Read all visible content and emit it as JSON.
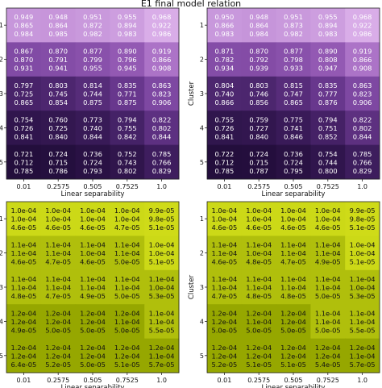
{
  "figure": {
    "title": "E1 final model relation"
  },
  "chart_data": [
    {
      "type": "heatmap",
      "id": "top-left",
      "colormap": "purples",
      "xlabel": "Linear separability",
      "ylabel": "Cluster",
      "x_ticks": [
        "0.01",
        "0.2575",
        "0.505",
        "0.7525",
        "1.0"
      ],
      "y_ticks": [
        "1",
        "2",
        "3",
        "4",
        "5"
      ],
      "cells": [
        [
          [
            "0.949",
            "0.865",
            "0.984"
          ],
          [
            "0.948",
            "0.864",
            "0.985"
          ],
          [
            "0.951",
            "0.872",
            "0.982"
          ],
          [
            "0.955",
            "0.894",
            "0.983"
          ],
          [
            "0.968",
            "0.922",
            "0.986"
          ]
        ],
        [
          [
            "0.867",
            "0.870",
            "0.931"
          ],
          [
            "0.870",
            "0.791",
            "0.941"
          ],
          [
            "0.877",
            "0.799",
            "0.955"
          ],
          [
            "0.890",
            "0.796",
            "0.945"
          ],
          [
            "0.919",
            "0.866",
            "0.908"
          ]
        ],
        [
          [
            "0.797",
            "0.725",
            "0.865"
          ],
          [
            "0.803",
            "0.745",
            "0.854"
          ],
          [
            "0.814",
            "0.744",
            "0.875"
          ],
          [
            "0.835",
            "0.771",
            "0.875"
          ],
          [
            "0.863",
            "0.823",
            "0.906"
          ]
        ],
        [
          [
            "0.754",
            "0.726",
            "0.841"
          ],
          [
            "0.760",
            "0.725",
            "0.840"
          ],
          [
            "0.773",
            "0.740",
            "0.844"
          ],
          [
            "0.794",
            "0.755",
            "0.842"
          ],
          [
            "0.822",
            "0.802",
            "0.844"
          ]
        ],
        [
          [
            "0.721",
            "0.712",
            "0.785"
          ],
          [
            "0.724",
            "0.715",
            "0.786"
          ],
          [
            "0.736",
            "0.724",
            "0.793"
          ],
          [
            "0.752",
            "0.743",
            "0.802"
          ],
          [
            "0.785",
            "0.766",
            "0.829"
          ]
        ]
      ]
    },
    {
      "type": "heatmap",
      "id": "top-right",
      "colormap": "purples",
      "xlabel": "Linear separability",
      "ylabel": "Cluster",
      "x_ticks": [
        "0.01",
        "0.2575",
        "0.505",
        "0.7525",
        "1.0"
      ],
      "y_ticks": [
        "1",
        "2",
        "3",
        "4",
        "5"
      ],
      "cells": [
        [
          [
            "0.950",
            "0.866",
            "0.983"
          ],
          [
            "0.948",
            "0.864",
            "0.984"
          ],
          [
            "0.951",
            "0.873",
            "0.982"
          ],
          [
            "0.955",
            "0.894",
            "0.983"
          ],
          [
            "0.968",
            "0.922",
            "0.986"
          ]
        ],
        [
          [
            "0.871",
            "0.782",
            "0.934"
          ],
          [
            "0.870",
            "0.792",
            "0.939"
          ],
          [
            "0.877",
            "0.798",
            "0.933"
          ],
          [
            "0.890",
            "0.808",
            "0.947"
          ],
          [
            "0.919",
            "0.866",
            "0.908"
          ]
        ],
        [
          [
            "0.804",
            "0.740",
            "0.866"
          ],
          [
            "0.803",
            "0.746",
            "0.856"
          ],
          [
            "0.815",
            "0.747",
            "0.865"
          ],
          [
            "0.835",
            "0.777",
            "0.876"
          ],
          [
            "0.863",
            "0.823",
            "0.906"
          ]
        ],
        [
          [
            "0.755",
            "0.726",
            "0.841"
          ],
          [
            "0.759",
            "0.727",
            "0.840"
          ],
          [
            "0.775",
            "0.741",
            "0.846"
          ],
          [
            "0.794",
            "0.751",
            "0.852"
          ],
          [
            "0.822",
            "0.802",
            "0.844"
          ]
        ],
        [
          [
            "0.722",
            "0.712",
            "0.785"
          ],
          [
            "0.724",
            "0.715",
            "0.787"
          ],
          [
            "0.736",
            "0.724",
            "0.795"
          ],
          [
            "0.754",
            "0.744",
            "0.800"
          ],
          [
            "0.785",
            "0.766",
            "0.829"
          ]
        ]
      ]
    },
    {
      "type": "heatmap",
      "id": "bottom-left",
      "colormap": "olive",
      "xlabel": "Linear separability",
      "ylabel": "Cluster",
      "x_ticks": [
        "0.01",
        "0.2575",
        "0.505",
        "0.7525",
        "1.0"
      ],
      "y_ticks": [
        "1",
        "2",
        "3",
        "4",
        "5"
      ],
      "cells": [
        [
          [
            "1.0e-04",
            "1.0e-04",
            "4.6e-05"
          ],
          [
            "1.0e-04",
            "1.0e-04",
            "4.6e-05"
          ],
          [
            "1.0e-04",
            "1.0e-04",
            "4.6e-05"
          ],
          [
            "1.0e-04",
            "1.0e-04",
            "4.7e-05"
          ],
          [
            "9.9e-05",
            "9.8e-05",
            "5.1e-05"
          ]
        ],
        [
          [
            "1.1e-04",
            "1.1e-04",
            "4.6e-05"
          ],
          [
            "1.1e-04",
            "1.1e-04",
            "4.7e-05"
          ],
          [
            "1.1e-04",
            "1.0e-04",
            "4.6e-05"
          ],
          [
            "1.1e-04",
            "1.1e-04",
            "5.0e-05"
          ],
          [
            "1.0e-04",
            "1.0e-04",
            "5.1e-05"
          ]
        ],
        [
          [
            "1.1e-04",
            "1.1e-04",
            "4.8e-05"
          ],
          [
            "1.1e-04",
            "1.1e-04",
            "4.7e-05"
          ],
          [
            "1.1e-04",
            "1.1e-04",
            "4.9e-05"
          ],
          [
            "1.1e-04",
            "1.1e-04",
            "5.0e-05"
          ],
          [
            "1.1e-04",
            "1.0e-04",
            "5.3e-05"
          ]
        ],
        [
          [
            "1.2e-04",
            "1.2e-04",
            "4.9e-05"
          ],
          [
            "1.2e-04",
            "1.2e-04",
            "5.0e-05"
          ],
          [
            "1.2e-04",
            "1.2e-04",
            "5.0e-05"
          ],
          [
            "1.2e-04",
            "1.1e-04",
            "5.0e-05"
          ],
          [
            "1.1e-04",
            "1.1e-04",
            "5.5e-05"
          ]
        ],
        [
          [
            "1.2e-04",
            "1.2e-04",
            "6.4e-05"
          ],
          [
            "1.2e-04",
            "1.2e-04",
            "5.2e-05"
          ],
          [
            "1.2e-04",
            "1.2e-04",
            "5.0e-05"
          ],
          [
            "1.2e-04",
            "1.2e-04",
            "5.1e-05"
          ],
          [
            "1.2e-04",
            "1.1e-04",
            "5.7e-05"
          ]
        ]
      ]
    },
    {
      "type": "heatmap",
      "id": "bottom-right",
      "colormap": "olive",
      "xlabel": "Linear separability",
      "ylabel": "Cluster",
      "x_ticks": [
        "0.01",
        "0.2575",
        "0.505",
        "0.7525",
        "1.0"
      ],
      "y_ticks": [
        "1",
        "2",
        "3",
        "4",
        "5"
      ],
      "cells": [
        [
          [
            "1.0e-04",
            "1.0e-04",
            "4.6e-05"
          ],
          [
            "1.0e-04",
            "1.0e-04",
            "4.6e-05"
          ],
          [
            "1.0e-04",
            "1.0e-04",
            "4.6e-05"
          ],
          [
            "1.0e-04",
            "1.0e-04",
            "4.6e-05"
          ],
          [
            "9.9e-05",
            "9.8e-05",
            "5.1e-05"
          ]
        ],
        [
          [
            "1.1e-04",
            "1.1e-04",
            "4.6e-05"
          ],
          [
            "1.1e-04",
            "1.0e-04",
            "4.8e-05"
          ],
          [
            "1.1e-04",
            "1.1e-04",
            "4.7e-05"
          ],
          [
            "1.1e-04",
            "1.1e-04",
            "4.9e-05"
          ],
          [
            "1.0e-04",
            "1.0e-04",
            "5.1e-05"
          ]
        ],
        [
          [
            "1.1e-04",
            "1.1e-04",
            "4.7e-05"
          ],
          [
            "1.1e-04",
            "1.1e-04",
            "4.8e-05"
          ],
          [
            "1.1e-04",
            "1.1e-04",
            "4.8e-05"
          ],
          [
            "1.1e-04",
            "1.1e-04",
            "5.0e-05"
          ],
          [
            "1.1e-04",
            "1.0e-04",
            "5.3e-05"
          ]
        ],
        [
          [
            "1.2e-04",
            "1.2e-04",
            "5.0e-05"
          ],
          [
            "1.2e-04",
            "1.1e-04",
            "5.0e-05"
          ],
          [
            "1.2e-04",
            "1.2e-04",
            "5.0e-05"
          ],
          [
            "1.1e-04",
            "1.1e-04",
            "5.0e-05"
          ],
          [
            "1.1e-04",
            "1.1e-04",
            "5.5e-05"
          ]
        ],
        [
          [
            "1.2e-04",
            "1.2e-04",
            "5.2e-05"
          ],
          [
            "1.2e-04",
            "1.2e-04",
            "5.1e-05"
          ],
          [
            "1.2e-04",
            "1.2e-04",
            "5.1e-05"
          ],
          [
            "1.2e-04",
            "1.2e-04",
            "5.4e-05"
          ],
          [
            "1.2e-04",
            "1.1e-04",
            "5.7e-05"
          ]
        ]
      ]
    }
  ]
}
